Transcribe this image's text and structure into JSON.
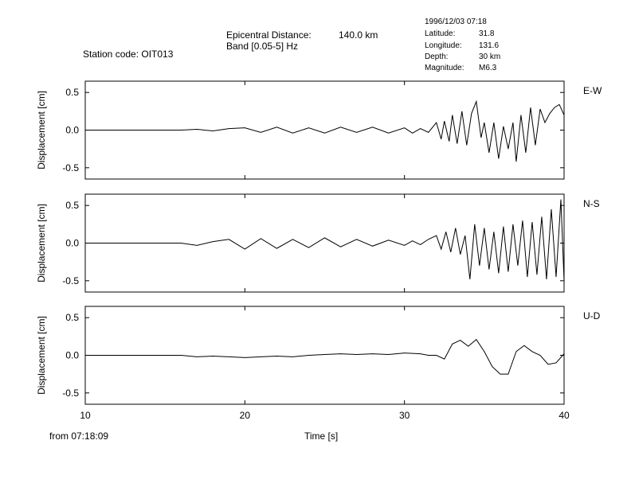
{
  "header": {
    "station_label": "Station code: OIT013",
    "distance_label": "Epicentral Distance:",
    "distance_value": "140.0 km",
    "band_label": "Band [0.05-5] Hz",
    "event_datetime": "1996/12/03 07:18",
    "latitude_label": "Latitude:",
    "latitude_value": "31.8",
    "longitude_label": "Longitude:",
    "longitude_value": "131.6",
    "depth_label": "Depth:",
    "depth_value": "30 km",
    "magnitude_label": "Magnitude:",
    "magnitude_value": "M6.3"
  },
  "footer": {
    "from_label": "from 07:18:09"
  },
  "chart_data": {
    "type": "line",
    "xlabel": "Time [s]",
    "ylabel": "Displacement [cm]",
    "xlim": [
      10,
      40
    ],
    "ylim": [
      -0.65,
      0.65
    ],
    "x_ticks": [
      10,
      20,
      30,
      40
    ],
    "y_ticks": [
      0.5,
      0.0,
      -0.5
    ],
    "y_tick_labels": [
      "0.5",
      "0.0",
      "-0.5"
    ],
    "line_color": "#000000",
    "series": [
      {
        "name": "E-W",
        "x": [
          13.0,
          16.0,
          17.0,
          18.0,
          19.0,
          20.0,
          21.0,
          22.0,
          23.0,
          24.0,
          25.0,
          26.0,
          27.0,
          28.0,
          29.0,
          30.0,
          30.5,
          31.0,
          31.5,
          32.0,
          32.3,
          32.5,
          32.8,
          33.0,
          33.3,
          33.6,
          33.9,
          34.2,
          34.5,
          34.8,
          35.0,
          35.3,
          35.6,
          35.9,
          36.2,
          36.5,
          36.8,
          37.0,
          37.3,
          37.6,
          37.9,
          38.2,
          38.5,
          38.8,
          39.1,
          39.4,
          39.7,
          40.0
        ],
        "values": [
          0.0,
          0.0,
          0.01,
          -0.01,
          0.02,
          0.03,
          -0.03,
          0.04,
          -0.04,
          0.03,
          -0.04,
          0.04,
          -0.03,
          0.04,
          -0.04,
          0.03,
          -0.04,
          0.02,
          -0.03,
          0.1,
          -0.12,
          0.12,
          -0.15,
          0.2,
          -0.18,
          0.25,
          -0.2,
          0.22,
          0.38,
          -0.1,
          0.1,
          -0.3,
          0.1,
          -0.38,
          0.05,
          -0.25,
          0.1,
          -0.42,
          0.2,
          -0.3,
          0.3,
          -0.2,
          0.28,
          0.1,
          0.22,
          0.3,
          0.34,
          0.2
        ]
      },
      {
        "name": "N-S",
        "x": [
          13.0,
          15.0,
          16.0,
          17.0,
          18.0,
          19.0,
          20.0,
          21.0,
          22.0,
          23.0,
          24.0,
          25.0,
          26.0,
          27.0,
          28.0,
          29.0,
          30.0,
          30.5,
          31.0,
          31.5,
          32.0,
          32.3,
          32.6,
          32.9,
          33.2,
          33.5,
          33.8,
          34.1,
          34.4,
          34.7,
          35.0,
          35.3,
          35.6,
          35.9,
          36.2,
          36.5,
          36.8,
          37.1,
          37.4,
          37.7,
          38.0,
          38.3,
          38.6,
          38.9,
          39.2,
          39.5,
          39.8,
          40.0
        ],
        "values": [
          0.0,
          0.0,
          0.0,
          -0.03,
          0.02,
          0.05,
          -0.08,
          0.06,
          -0.07,
          0.05,
          -0.06,
          0.07,
          -0.05,
          0.05,
          -0.04,
          0.04,
          -0.03,
          0.03,
          -0.02,
          0.05,
          0.1,
          -0.08,
          0.15,
          -0.12,
          0.2,
          -0.15,
          0.1,
          -0.48,
          0.25,
          -0.3,
          0.2,
          -0.35,
          0.15,
          -0.4,
          0.22,
          -0.38,
          0.25,
          -0.3,
          0.3,
          -0.45,
          0.28,
          -0.42,
          0.35,
          -0.48,
          0.45,
          -0.45,
          0.58,
          -0.5
        ]
      },
      {
        "name": "U-D",
        "x": [
          13.0,
          16.0,
          17.0,
          18.0,
          19.0,
          20.0,
          21.0,
          22.0,
          23.0,
          24.0,
          25.0,
          26.0,
          27.0,
          28.0,
          29.0,
          30.0,
          31.0,
          31.5,
          32.0,
          32.5,
          33.0,
          33.5,
          34.0,
          34.5,
          35.0,
          35.5,
          36.0,
          36.5,
          37.0,
          37.5,
          38.0,
          38.5,
          39.0,
          39.5,
          40.0
        ],
        "values": [
          0.0,
          0.0,
          -0.02,
          -0.01,
          -0.02,
          -0.03,
          -0.02,
          -0.01,
          -0.02,
          0.0,
          0.01,
          0.02,
          0.01,
          0.02,
          0.01,
          0.03,
          0.02,
          0.0,
          0.0,
          -0.05,
          0.15,
          0.2,
          0.12,
          0.21,
          0.05,
          -0.15,
          -0.25,
          -0.25,
          0.05,
          0.13,
          0.05,
          0.0,
          -0.12,
          -0.1,
          0.02
        ]
      }
    ]
  }
}
